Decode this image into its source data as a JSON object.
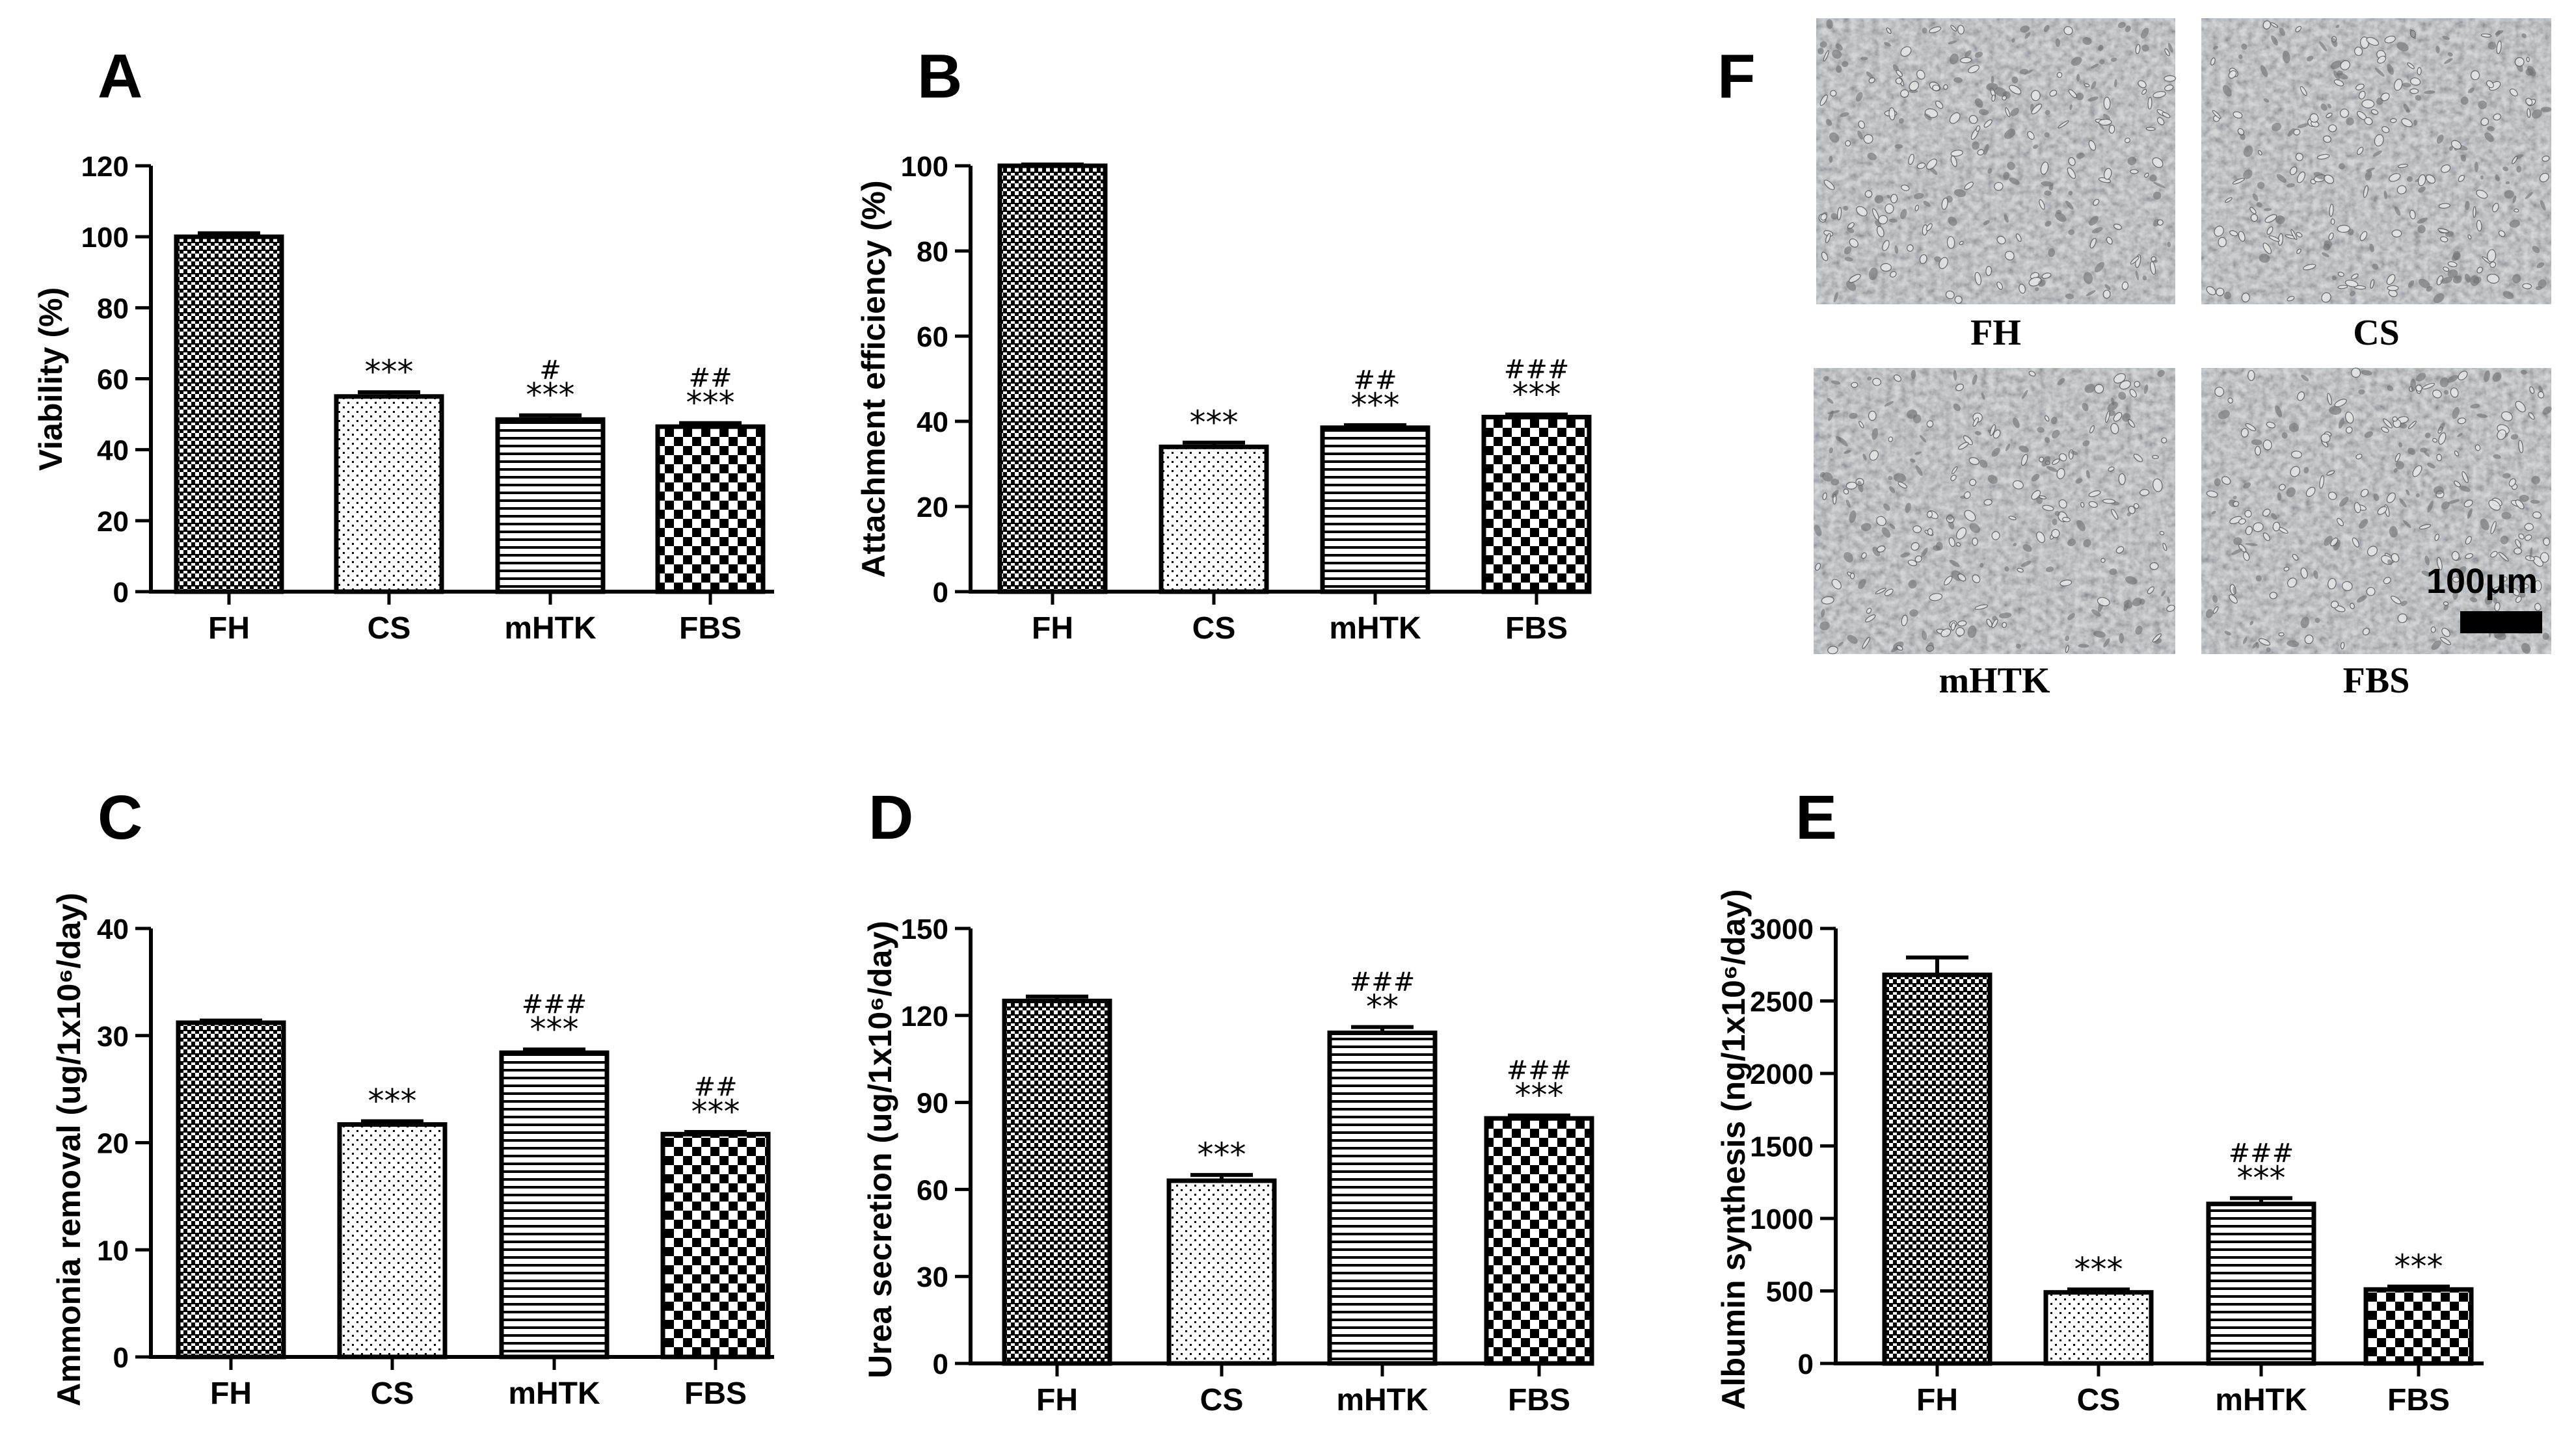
{
  "colors": {
    "ink": "#000000",
    "background": "#ffffff",
    "micro_bg": "#a9acae"
  },
  "chart_data": [
    {
      "id": "A",
      "panel_label": "A",
      "type": "bar",
      "title": "",
      "xlabel": "",
      "ylabel": "Viability (%)",
      "ylim": [
        0,
        120
      ],
      "yticks": [
        0,
        20,
        40,
        60,
        80,
        100,
        120
      ],
      "categories": [
        "FH",
        "CS",
        "mHTK",
        "FBS"
      ],
      "values": [
        100,
        55,
        48.5,
        46.5
      ],
      "errors": [
        1.0,
        1.2,
        1.2,
        1.0
      ],
      "patterns": [
        "dense",
        "dots",
        "hlines",
        "checker"
      ],
      "sig_star": [
        "",
        "***",
        "***",
        "***"
      ],
      "sig_hash": [
        "",
        "",
        "#",
        "##"
      ]
    },
    {
      "id": "B",
      "panel_label": "B",
      "type": "bar",
      "title": "",
      "xlabel": "",
      "ylabel": "Attachment efficiency (%)",
      "ylim": [
        0,
        100
      ],
      "yticks": [
        0,
        20,
        40,
        60,
        80,
        100
      ],
      "categories": [
        "FH",
        "CS",
        "mHTK",
        "FBS"
      ],
      "values": [
        100,
        34,
        38.5,
        41
      ],
      "errors": [
        0.3,
        1.0,
        0.6,
        0.6
      ],
      "patterns": [
        "dense",
        "dots",
        "hlines",
        "checker"
      ],
      "sig_star": [
        "",
        "***",
        "***",
        "***"
      ],
      "sig_hash": [
        "",
        "",
        "##",
        "###"
      ]
    },
    {
      "id": "C",
      "panel_label": "C",
      "type": "bar",
      "title": "",
      "xlabel": "",
      "ylabel": "Ammonia removal (ug/1x10⁶/day)",
      "ylim": [
        0,
        40
      ],
      "yticks": [
        0,
        10,
        20,
        30,
        40
      ],
      "categories": [
        "FH",
        "CS",
        "mHTK",
        "FBS"
      ],
      "values": [
        31.2,
        21.7,
        28.4,
        20.8
      ],
      "errors": [
        0.2,
        0.3,
        0.3,
        0.2
      ],
      "patterns": [
        "dense",
        "dots",
        "hlines",
        "checker"
      ],
      "sig_star": [
        "",
        "***",
        "***",
        "***"
      ],
      "sig_hash": [
        "",
        "",
        "###",
        "##"
      ]
    },
    {
      "id": "D",
      "panel_label": "D",
      "type": "bar",
      "title": "",
      "xlabel": "",
      "ylabel": "Urea secretion (ug/1x10⁶/day)",
      "ylim": [
        0,
        150
      ],
      "yticks": [
        0,
        30,
        60,
        90,
        120,
        150
      ],
      "categories": [
        "FH",
        "CS",
        "mHTK",
        "FBS"
      ],
      "values": [
        125,
        63,
        114,
        84.5
      ],
      "errors": [
        1.5,
        2.0,
        2.0,
        1.0
      ],
      "patterns": [
        "dense",
        "dots",
        "hlines",
        "checker"
      ],
      "sig_star": [
        "",
        "***",
        "**",
        "***"
      ],
      "sig_hash": [
        "",
        "",
        "###",
        "###"
      ]
    },
    {
      "id": "E",
      "panel_label": "E",
      "type": "bar",
      "title": "",
      "xlabel": "",
      "ylabel": "Albumin synthesis (ng/1x10⁶/day)",
      "ylim": [
        0,
        3000
      ],
      "yticks": [
        0,
        500,
        1000,
        1500,
        2000,
        2500,
        3000
      ],
      "categories": [
        "FH",
        "CS",
        "mHTK",
        "FBS"
      ],
      "values": [
        2680,
        490,
        1100,
        510
      ],
      "errors": [
        120,
        20,
        40,
        20
      ],
      "patterns": [
        "dense",
        "dots",
        "hlines",
        "checker"
      ],
      "sig_star": [
        "",
        "***",
        "***",
        "***"
      ],
      "sig_hash": [
        "",
        "",
        "###",
        ""
      ]
    }
  ],
  "micrographs": {
    "panel_label": "F",
    "images": [
      {
        "label": "FH",
        "seed": 11
      },
      {
        "label": "CS",
        "seed": 23
      },
      {
        "label": "mHTK",
        "seed": 37
      },
      {
        "label": "FBS",
        "seed": 51
      }
    ],
    "scale_bar_label": "100μm"
  }
}
